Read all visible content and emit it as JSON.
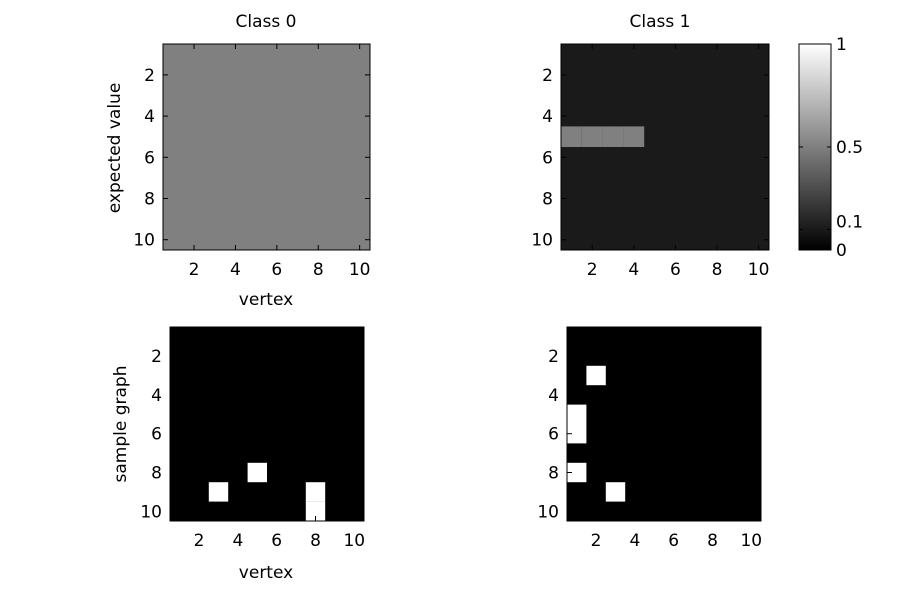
{
  "chart_data": [
    {
      "type": "heatmap",
      "title": "Class 0",
      "xlabel": "vertex",
      "ylabel": "expected value",
      "x_ticks": [
        "2",
        "4",
        "6",
        "8",
        "10"
      ],
      "y_ticks": [
        "2",
        "4",
        "6",
        "8",
        "10"
      ],
      "xlim": [
        0.5,
        10.5
      ],
      "ylim": [
        0.5,
        10.5
      ],
      "default_value": 0.5,
      "cells": []
    },
    {
      "type": "heatmap",
      "title": "Class 1",
      "xlabel": "",
      "ylabel": "",
      "x_ticks": [
        "2",
        "4",
        "6",
        "8",
        "10"
      ],
      "y_ticks": [
        "2",
        "4",
        "6",
        "8",
        "10"
      ],
      "xlim": [
        0.5,
        10.5
      ],
      "ylim": [
        0.5,
        10.5
      ],
      "default_value": 0.1,
      "cells": [
        {
          "x": 1,
          "y": 5,
          "value": 0.5
        },
        {
          "x": 2,
          "y": 5,
          "value": 0.5
        },
        {
          "x": 3,
          "y": 5,
          "value": 0.5
        },
        {
          "x": 4,
          "y": 5,
          "value": 0.5
        }
      ]
    },
    {
      "type": "heatmap",
      "title": "",
      "xlabel": "vertex",
      "ylabel": "sample graph",
      "x_ticks": [
        "2",
        "4",
        "6",
        "8",
        "10"
      ],
      "y_ticks": [
        "2",
        "4",
        "6",
        "8",
        "10"
      ],
      "xlim": [
        0.5,
        10.5
      ],
      "ylim": [
        0.5,
        10.5
      ],
      "default_value": 0,
      "cells": [
        {
          "x": 5,
          "y": 8,
          "value": 1
        },
        {
          "x": 3,
          "y": 9,
          "value": 1
        },
        {
          "x": 8,
          "y": 9,
          "value": 1
        },
        {
          "x": 8,
          "y": 10,
          "value": 1
        }
      ]
    },
    {
      "type": "heatmap",
      "title": "",
      "xlabel": "",
      "ylabel": "",
      "x_ticks": [
        "2",
        "4",
        "6",
        "8",
        "10"
      ],
      "y_ticks": [
        "2",
        "4",
        "6",
        "8",
        "10"
      ],
      "xlim": [
        0.5,
        10.5
      ],
      "ylim": [
        0.5,
        10.5
      ],
      "default_value": 0,
      "cells": [
        {
          "x": 2,
          "y": 3,
          "value": 1
        },
        {
          "x": 1,
          "y": 5,
          "value": 1
        },
        {
          "x": 1,
          "y": 6,
          "value": 1
        },
        {
          "x": 1,
          "y": 8,
          "value": 1
        },
        {
          "x": 3,
          "y": 9,
          "value": 1
        }
      ]
    }
  ],
  "colorbar": {
    "colormap": "gray",
    "range": [
      0,
      1
    ],
    "ticks": [
      {
        "value": 1,
        "label": "1"
      },
      {
        "value": 0.5,
        "label": "0.5"
      },
      {
        "value": 0.1,
        "label": "0.1"
      },
      {
        "value": 0,
        "label": "0"
      }
    ]
  }
}
